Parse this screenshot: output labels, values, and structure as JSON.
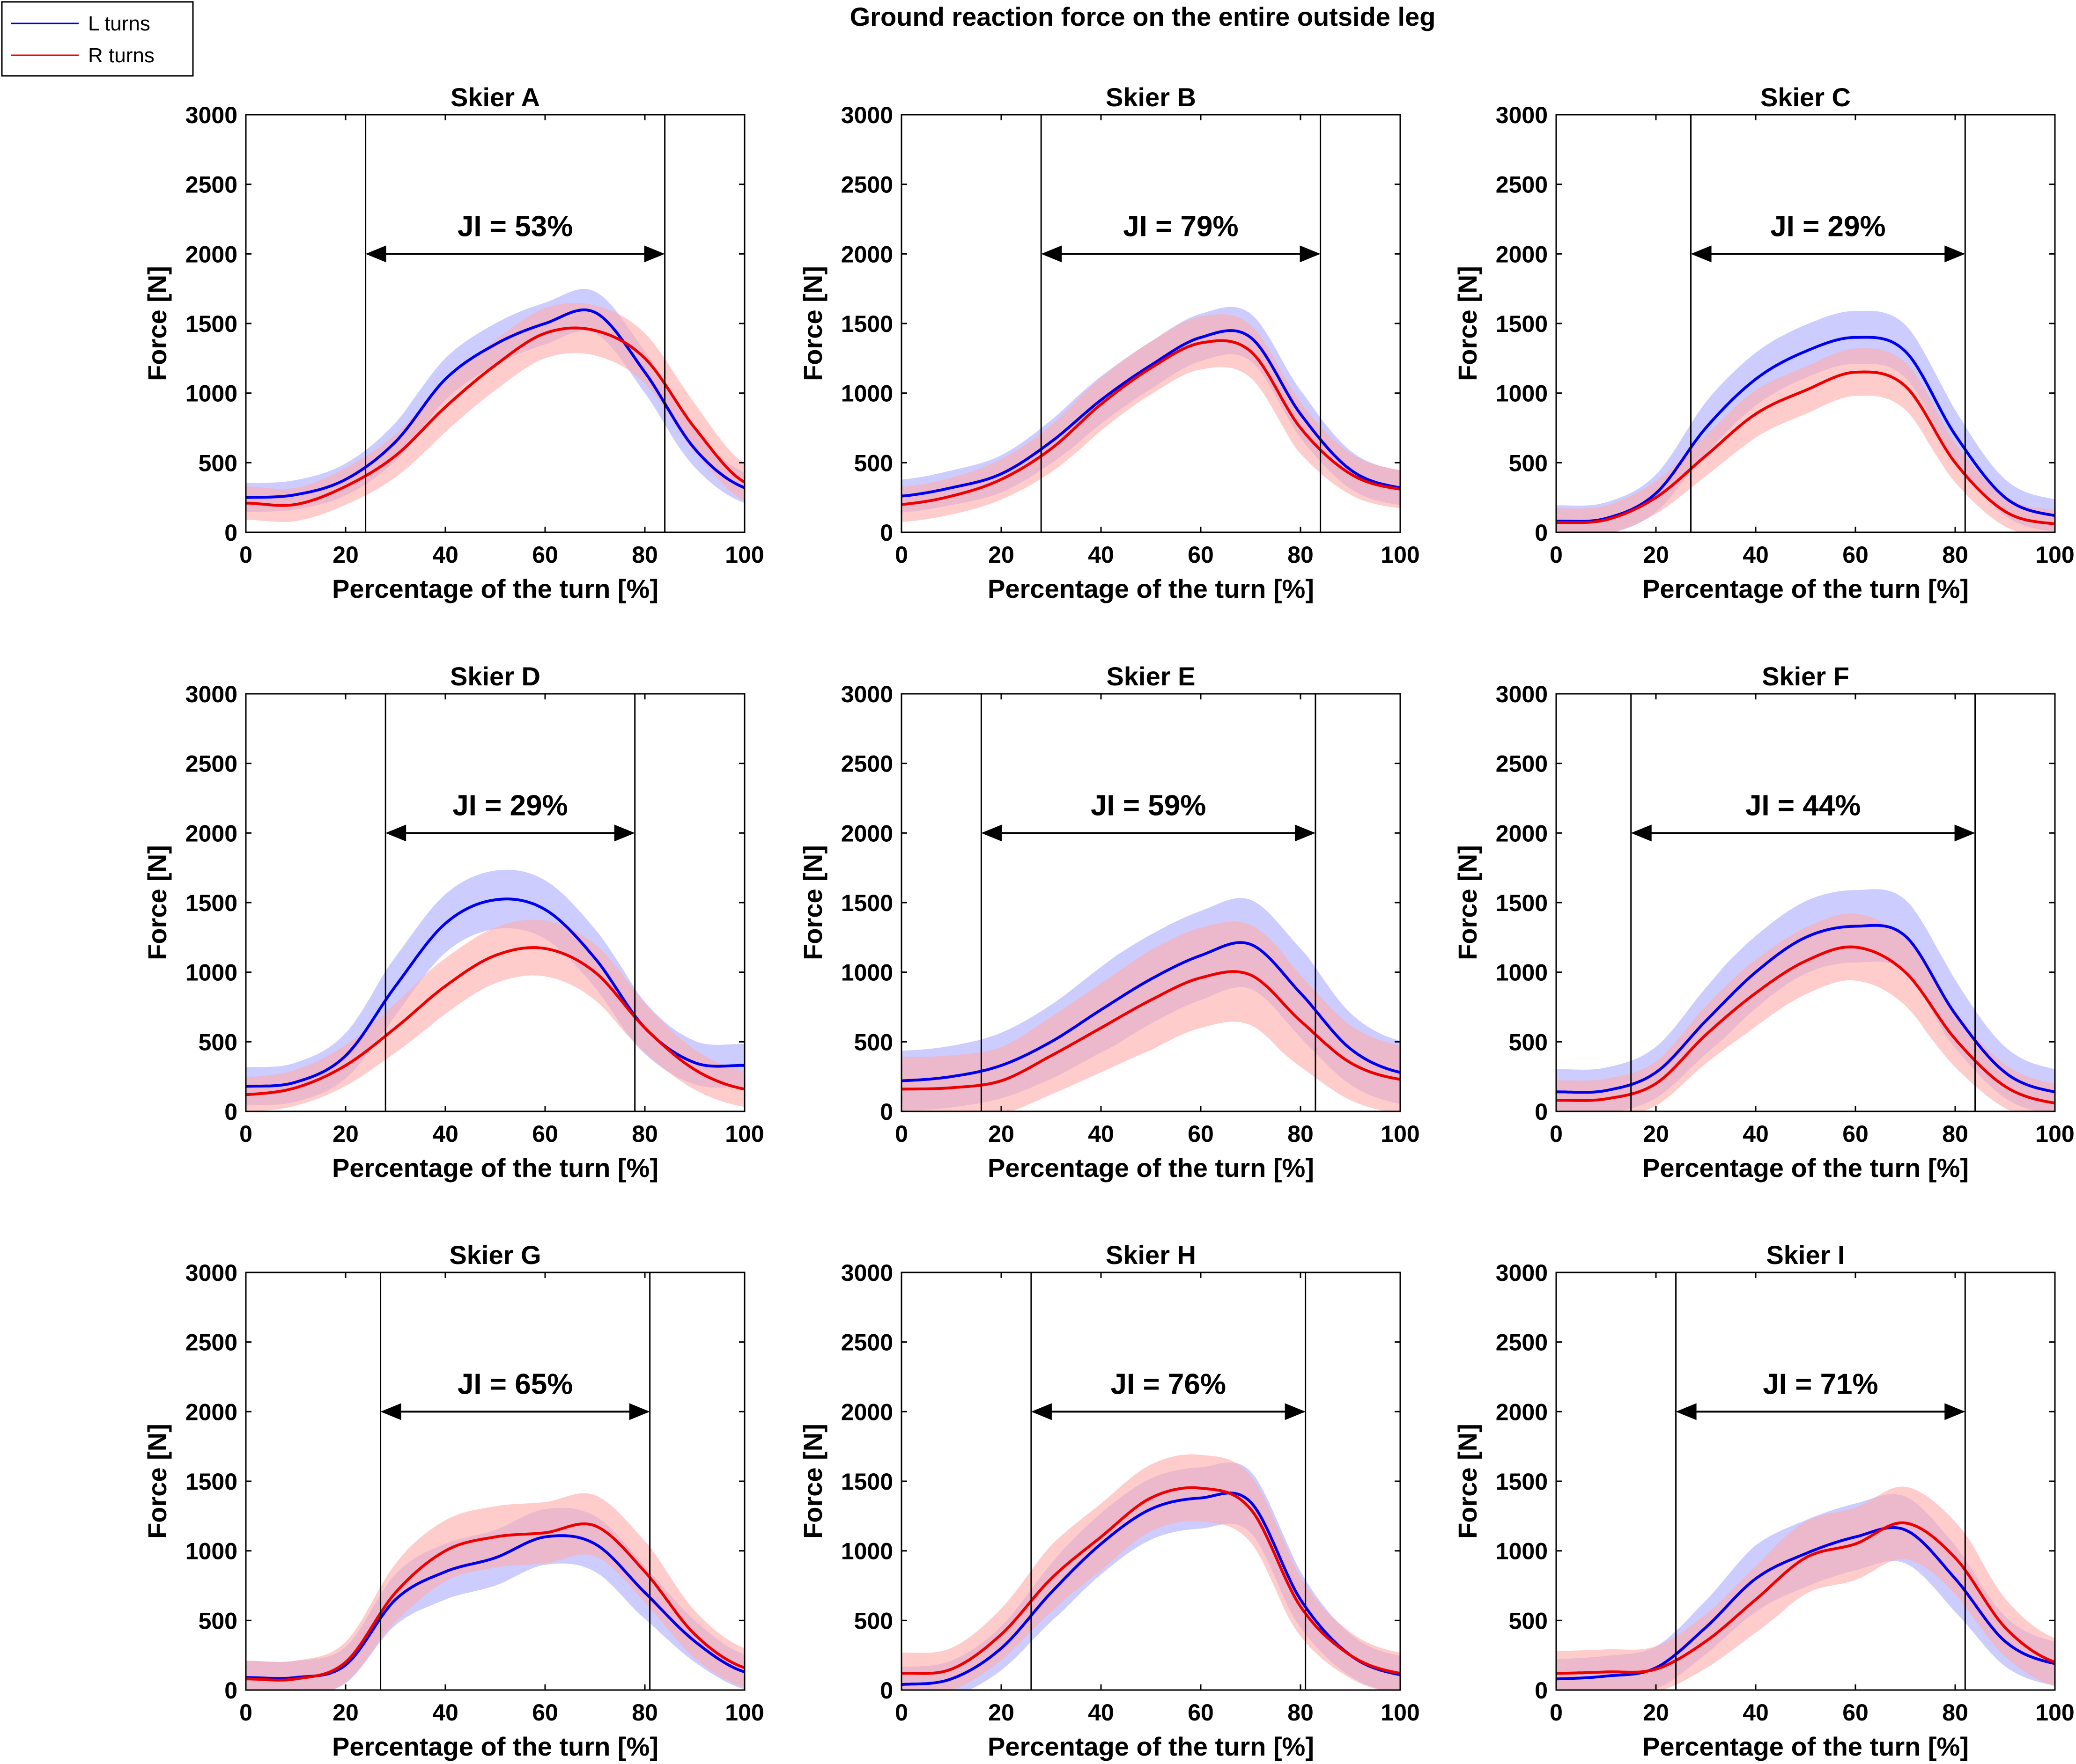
{
  "chart_data": {
    "type": "line",
    "title": "Ground reaction force on the entire outside leg",
    "legend": {
      "position": "top-left",
      "entries": [
        {
          "label": "L turns",
          "color": "#0000ee"
        },
        {
          "label": "R turns",
          "color": "#ee0000"
        }
      ]
    },
    "colors": {
      "L": "#0000ee",
      "R": "#ee0000",
      "L_band": "#aaaaff",
      "R_band": "#ffaaaa"
    },
    "xlabel": "Percentage of the turn [%]",
    "ylabel": "Force [N]",
    "xlim": [
      0,
      100
    ],
    "ylim": [
      0,
      3000
    ],
    "xticks": [
      0,
      20,
      40,
      60,
      80,
      100
    ],
    "yticks": [
      0,
      500,
      1000,
      1500,
      2000,
      2500,
      3000
    ],
    "x": [
      0,
      10,
      20,
      30,
      40,
      50,
      60,
      70,
      80,
      90,
      100
    ],
    "panels": [
      {
        "title": "Skier A",
        "ji_label": "JI = 53%",
        "ji_start": 24,
        "ji_end": 84,
        "L": [
          250,
          270,
          380,
          650,
          1100,
          1350,
          1500,
          1580,
          1150,
          600,
          320
        ],
        "R": [
          210,
          200,
          330,
          550,
          900,
          1200,
          1430,
          1450,
          1250,
          750,
          360
        ],
        "L_band": 150,
        "R_band": 180
      },
      {
        "title": "Skier B",
        "ji_label": "JI = 79%",
        "ji_start": 28,
        "ji_end": 84,
        "L": [
          260,
          320,
          420,
          650,
          950,
          1200,
          1400,
          1400,
          850,
          450,
          320
        ],
        "R": [
          200,
          260,
          380,
          600,
          920,
          1180,
          1360,
          1300,
          750,
          420,
          310
        ],
        "L_band": 170,
        "R_band": 190
      },
      {
        "title": "Skier C",
        "ji_label": "JI = 29%",
        "ji_start": 27,
        "ji_end": 82,
        "L": [
          80,
          100,
          280,
          750,
          1100,
          1300,
          1400,
          1300,
          700,
          250,
          120
        ],
        "R": [
          70,
          90,
          250,
          550,
          850,
          1020,
          1150,
          1050,
          500,
          150,
          60
        ],
        "L_band": 190,
        "R_band": 170
      },
      {
        "title": "Skier D",
        "ji_label": "JI = 29%",
        "ji_start": 28,
        "ji_end": 78,
        "L": [
          180,
          210,
          400,
          900,
          1350,
          1520,
          1450,
          1100,
          600,
          350,
          330
        ],
        "R": [
          120,
          170,
          330,
          600,
          900,
          1120,
          1170,
          1000,
          600,
          300,
          160
        ],
        "L_band": 210,
        "R_band": 200
      },
      {
        "title": "Skier E",
        "ji_label": "JI = 59%",
        "ji_start": 16,
        "ji_end": 83,
        "L": [
          220,
          250,
          330,
          500,
          730,
          950,
          1120,
          1200,
          850,
          450,
          280
        ],
        "R": [
          160,
          170,
          220,
          400,
          600,
          800,
          960,
          980,
          650,
          350,
          230
        ],
        "L_band": 320,
        "R_band": 360
      },
      {
        "title": "Skier F",
        "ji_label": "JI = 44%",
        "ji_start": 15,
        "ji_end": 84,
        "L": [
          140,
          150,
          280,
          650,
          1000,
          1250,
          1330,
          1260,
          700,
          280,
          140
        ],
        "R": [
          80,
          90,
          200,
          550,
          850,
          1080,
          1180,
          1000,
          520,
          180,
          60
        ],
        "L_band": 260,
        "R_band": 240
      },
      {
        "title": "Skier G",
        "ji_label": "JI = 65%",
        "ji_start": 27,
        "ji_end": 81,
        "L": [
          90,
          90,
          180,
          650,
          850,
          950,
          1100,
          1050,
          700,
          350,
          130
        ],
        "R": [
          80,
          80,
          200,
          700,
          1000,
          1100,
          1130,
          1180,
          850,
          400,
          160
        ],
        "L_band": 200,
        "R_band": 220
      },
      {
        "title": "Skier H",
        "ji_label": "JI = 76%",
        "ji_start": 26,
        "ji_end": 81,
        "L": [
          40,
          80,
          300,
          700,
          1050,
          1300,
          1380,
          1350,
          650,
          250,
          110
        ],
        "R": [
          120,
          150,
          400,
          800,
          1100,
          1380,
          1450,
          1300,
          600,
          250,
          120
        ],
        "L_band": 220,
        "R_band": 240
      },
      {
        "title": "Skier I",
        "ji_label": "JI = 71%",
        "ji_start": 24,
        "ji_end": 82,
        "L": [
          80,
          100,
          160,
          450,
          800,
          980,
          1100,
          1150,
          800,
          350,
          190
        ],
        "R": [
          120,
          130,
          150,
          350,
          650,
          950,
          1050,
          1200,
          950,
          450,
          200
        ],
        "L_band": 240,
        "R_band": 260
      }
    ]
  }
}
